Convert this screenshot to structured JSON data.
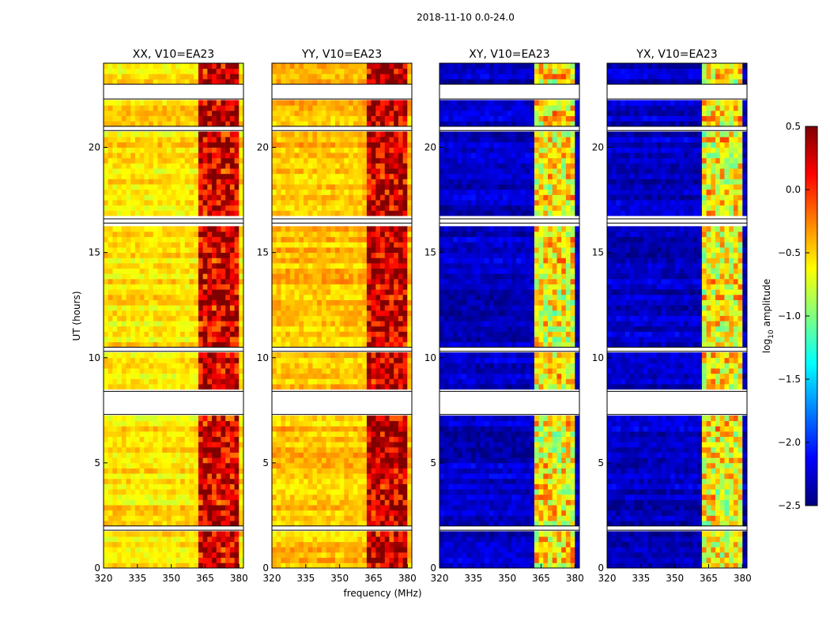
{
  "chart_data": {
    "type": "heatmap",
    "title": "2018-11-10 0.0-24.0",
    "xlabel": "frequency (MHz)",
    "ylabel": "UT (hours)",
    "xlim": [
      320,
      382
    ],
    "ylim": [
      0,
      24
    ],
    "xticks": [
      320,
      335,
      350,
      365,
      380
    ],
    "yticks": [
      0,
      5,
      10,
      15,
      20
    ],
    "colorbar": {
      "label_prefix": "log",
      "label_sub": "10",
      "label_suffix": " amplitude",
      "range": [
        -2.5,
        0.5
      ],
      "ticks": [
        {
          "value": 0.5,
          "text": "0.5"
        },
        {
          "value": 0.0,
          "text": "0.0"
        },
        {
          "value": -0.5,
          "text": "−0.5"
        },
        {
          "value": -1.0,
          "text": "−1.0"
        },
        {
          "value": -1.5,
          "text": "−1.5"
        },
        {
          "value": -2.0,
          "text": "−2.0"
        },
        {
          "value": -2.5,
          "text": "−2.5"
        }
      ]
    },
    "panels": [
      {
        "title": "XX, V10=EA23",
        "pol": "XX",
        "baseline_level": -0.55,
        "rfi_level": 0.25
      },
      {
        "title": "YY, V10=EA23",
        "pol": "YY",
        "baseline_level": -0.45,
        "rfi_level": 0.3
      },
      {
        "title": "XY, V10=EA23",
        "pol": "XY",
        "baseline_level": -2.3,
        "rfi_level": -0.6
      },
      {
        "title": "YX, V10=EA23",
        "pol": "YX",
        "baseline_level": -2.3,
        "rfi_level": -0.6
      }
    ],
    "rfi_band_mhz": [
      363,
      380
    ],
    "flagged_ut_hours": [
      [
        7.3,
        8.4
      ],
      [
        1.8,
        2.0
      ],
      [
        10.3,
        10.5
      ],
      [
        16.4,
        16.6
      ],
      [
        20.8,
        21.0
      ],
      [
        22.3,
        23.0
      ]
    ]
  }
}
